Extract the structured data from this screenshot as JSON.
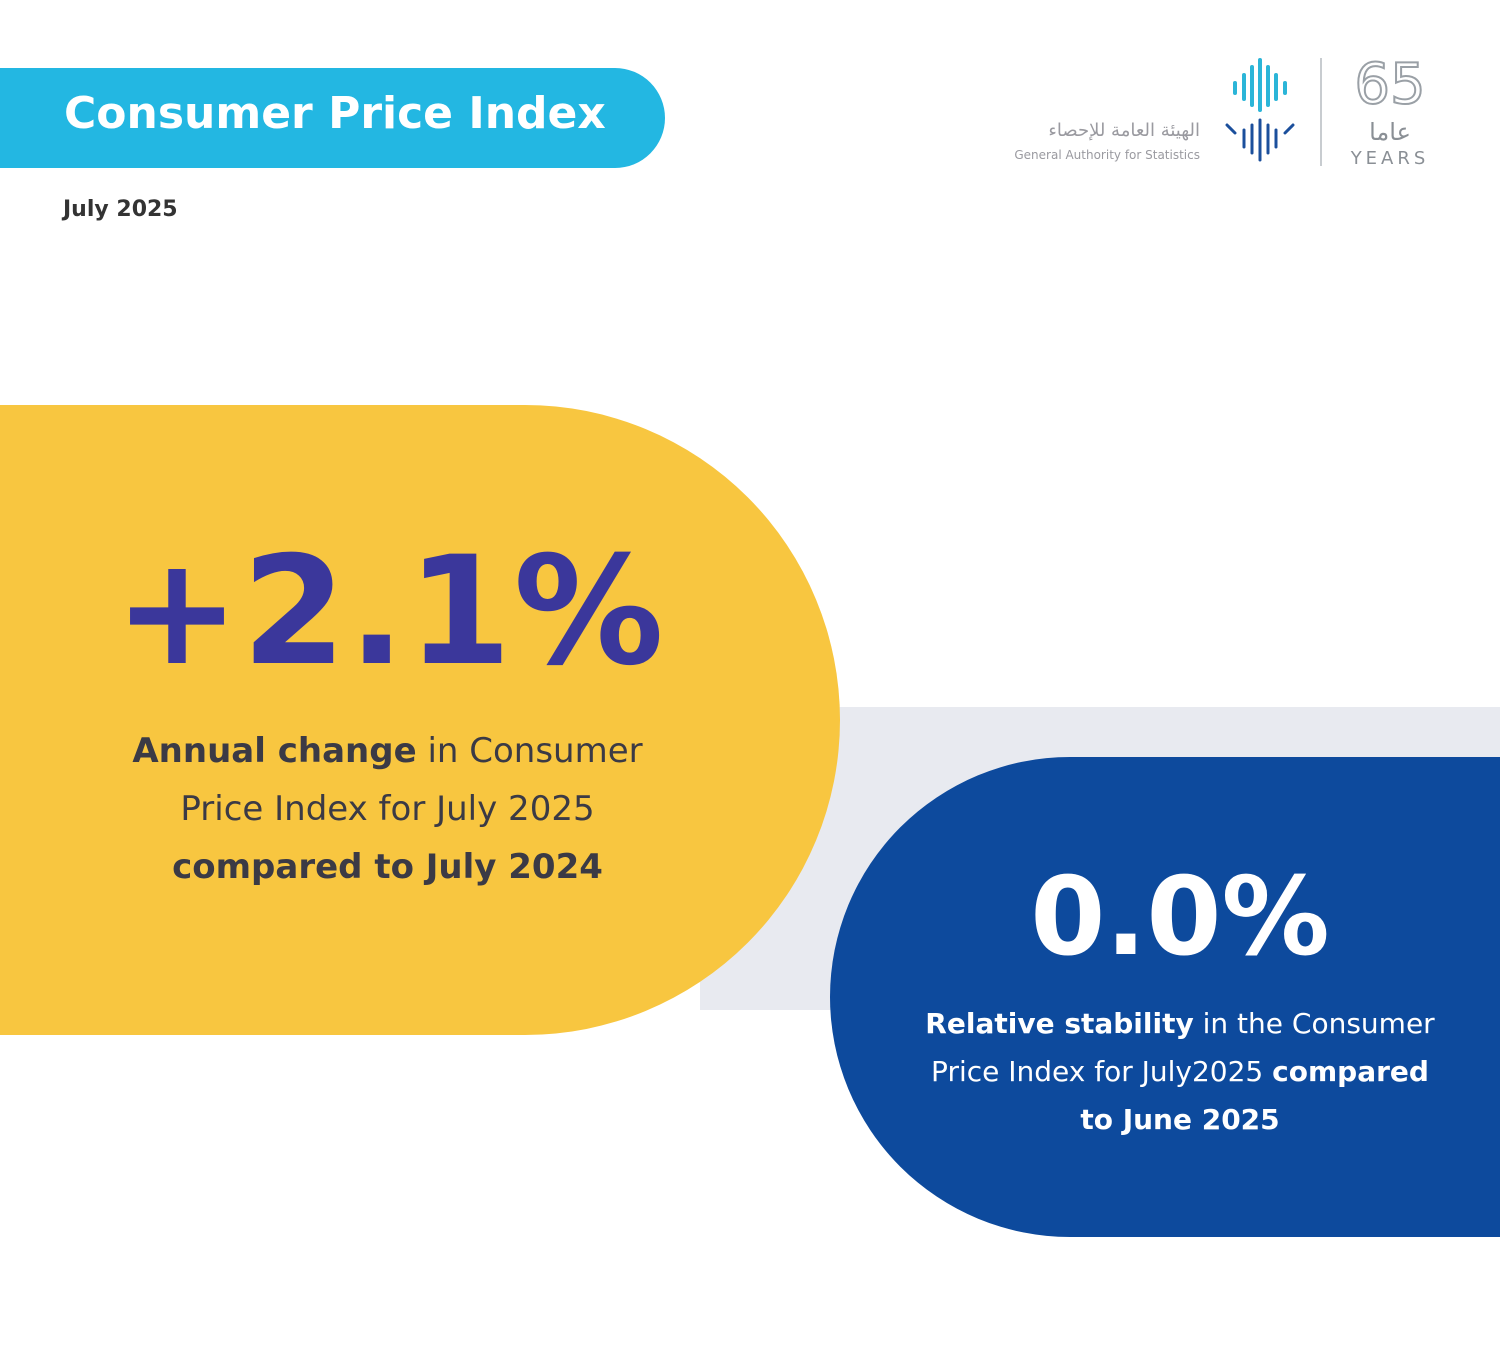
{
  "header": {
    "title": "Consumer Price Index",
    "date": "July 2025"
  },
  "logo": {
    "arabic_name": "الهيئة العامة للإحصاء",
    "english_name": "General Authority for Statistics",
    "anniversary_number": "65",
    "anniversary_arabic": "عاما",
    "anniversary_english": "YEARS"
  },
  "cards": [
    {
      "stat": "+2.1%",
      "lines": [
        [
          {
            "text": "Annual change",
            "bold": true
          },
          {
            "text": " in Consumer",
            "bold": false
          }
        ],
        [
          {
            "text": "Price Index for July 2025",
            "bold": false
          }
        ],
        [
          {
            "text": "compared to July 2024",
            "bold": true
          }
        ]
      ]
    },
    {
      "stat": "0.0%",
      "lines": [
        [
          {
            "text": "Relative stability",
            "bold": true
          },
          {
            "text": " in the Consumer",
            "bold": false
          }
        ],
        [
          {
            "text": "Price Index for July2025 ",
            "bold": false
          },
          {
            "text": "compared",
            "bold": true
          }
        ],
        [
          {
            "text": "to June 2025",
            "bold": true
          }
        ]
      ]
    }
  ]
}
